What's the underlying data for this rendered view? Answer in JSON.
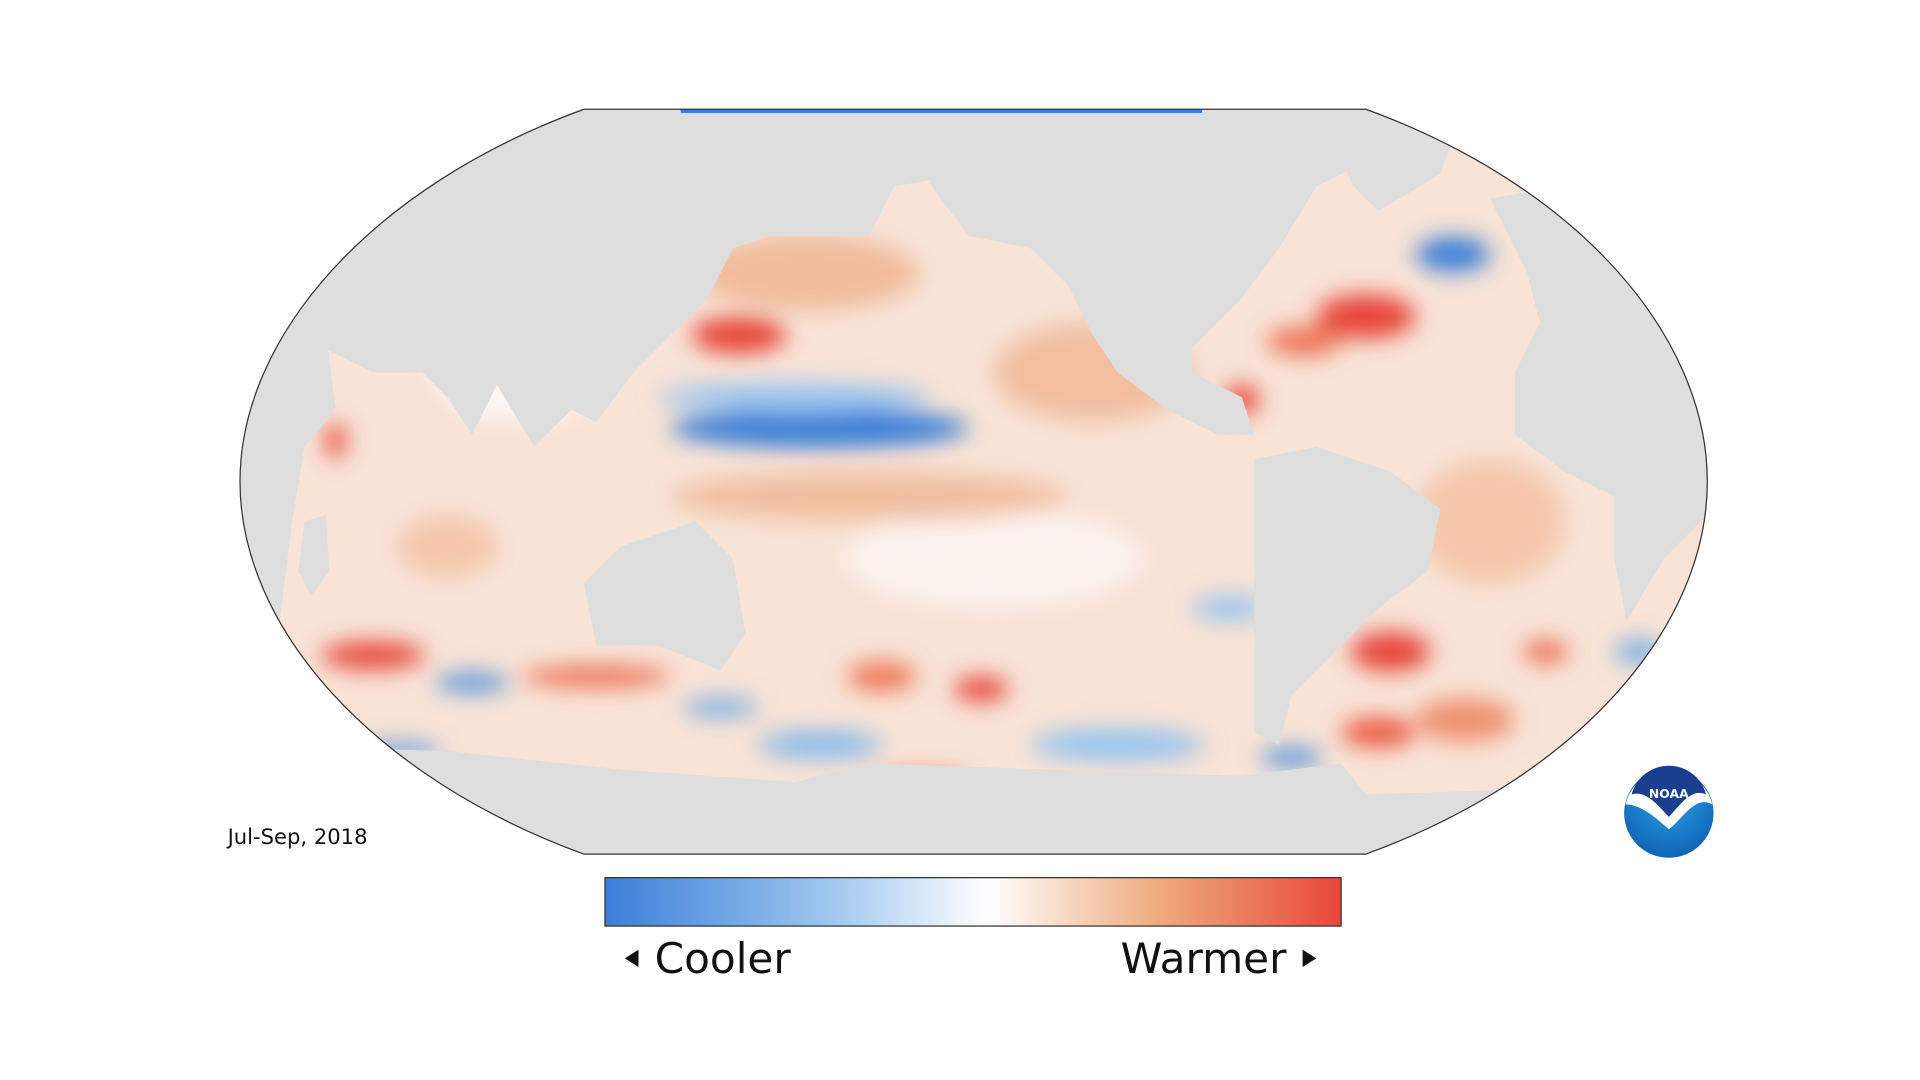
{
  "map": {
    "date": "Jul-Sep, 2018"
  },
  "legend": {
    "low_label": "Cooler",
    "high_label": "Warmer"
  },
  "logo": {
    "text": "NOAA"
  }
}
